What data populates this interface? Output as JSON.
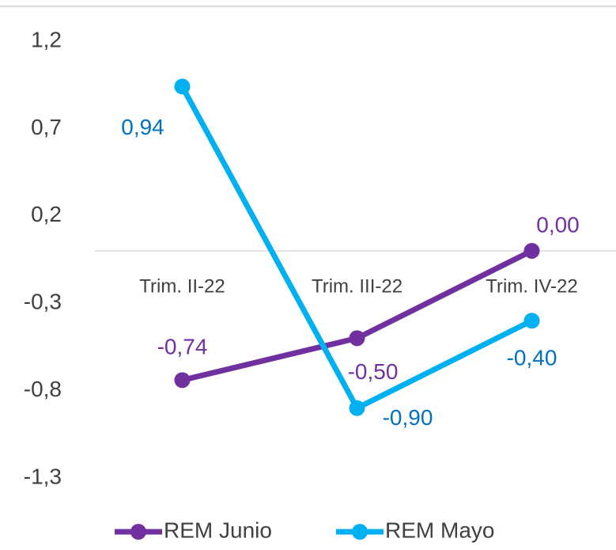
{
  "chart_data": {
    "type": "line",
    "categories": [
      "Trim. II-22",
      "Trim. III-22",
      "Trim. IV-22"
    ],
    "series": [
      {
        "name": "REM Junio",
        "color": "#7030a0",
        "label_color": "#7030a0",
        "values": [
          -0.74,
          -0.5,
          0
        ],
        "value_labels": [
          "-0,74",
          "-0,50",
          "0,00"
        ]
      },
      {
        "name": "REM Mayo",
        "color": "#00b0f0",
        "label_color": "#0070c0",
        "values": [
          0.94,
          -0.9,
          -0.4
        ],
        "value_labels": [
          "0,94",
          "-0,90",
          "-0,40"
        ]
      }
    ],
    "ylim": [
      -1.3,
      1.2
    ],
    "yticks": [
      {
        "value": 1.2,
        "label": "1,2"
      },
      {
        "value": 0.7,
        "label": "0,7"
      },
      {
        "value": 0.2,
        "label": "0,2"
      },
      {
        "value": -0.3,
        "label": "-0,3"
      },
      {
        "value": -0.8,
        "label": "-0,8"
      },
      {
        "value": -1.3,
        "label": "-1,3"
      }
    ],
    "grid": false,
    "legend": "bottom"
  }
}
